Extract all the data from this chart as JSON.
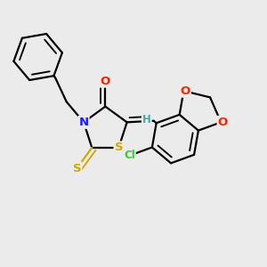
{
  "background_color": "#ebebeb",
  "bond_color": "#000000",
  "bond_width": 1.6,
  "atom_colors": {
    "N": "#1a1aff",
    "O": "#ff2200",
    "S": "#ccaa00",
    "Cl": "#33cc33",
    "H": "#44aaaa"
  },
  "figsize": [
    3.0,
    3.0
  ],
  "dpi": 100
}
